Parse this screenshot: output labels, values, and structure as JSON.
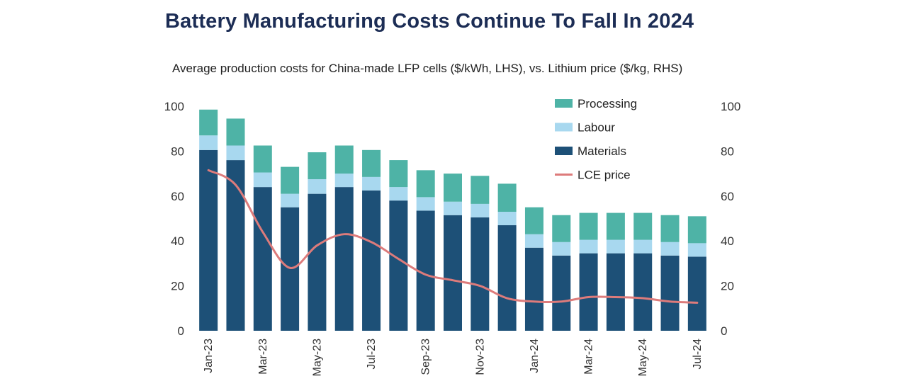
{
  "title": "Battery Manufacturing Costs Continue To Fall In 2024",
  "subtitle": "Average production costs for China-made LFP cells ($/kWh, LHS), vs. Lithium price ($/kg, RHS)",
  "colors": {
    "processing": "#4eb3a6",
    "labour": "#a8d8ef",
    "materials": "#1d5077",
    "lce_price": "#dd7b7b",
    "axis_text": "#333333",
    "title": "#1c2d55"
  },
  "chart_data": {
    "type": "bar",
    "stacked": true,
    "title": "Battery Manufacturing Costs Continue To Fall In 2024",
    "subtitle": "Average production costs for China-made LFP cells ($/kWh, LHS), vs. Lithium price ($/kg, RHS)",
    "categories": [
      "Jan-23",
      "Feb-23",
      "Mar-23",
      "Apr-23",
      "May-23",
      "Jun-23",
      "Jul-23",
      "Aug-23",
      "Sep-23",
      "Oct-23",
      "Nov-23",
      "Dec-23",
      "Jan-24",
      "Feb-24",
      "Mar-24",
      "Apr-24",
      "May-24",
      "Jun-24",
      "Jul-24"
    ],
    "x_tick_labels": [
      "Jan-23",
      "",
      "Mar-23",
      "",
      "May-23",
      "",
      "Jul-23",
      "",
      "Sep-23",
      "",
      "Nov-23",
      "",
      "Jan-24",
      "",
      "Mar-24",
      "",
      "May-24",
      "",
      "Jul-24"
    ],
    "series": [
      {
        "name": "Materials",
        "kind": "bar",
        "axis": "left",
        "color": "#1d5077",
        "values": [
          80.5,
          76,
          64,
          55,
          61,
          64,
          62.5,
          58,
          53.5,
          51.5,
          50.5,
          47,
          37,
          33.5,
          34.5,
          34.5,
          34.5,
          33.5,
          33
        ]
      },
      {
        "name": "Labour",
        "kind": "bar",
        "axis": "left",
        "color": "#a8d8ef",
        "values": [
          6.5,
          6.5,
          6.5,
          6,
          6.5,
          6,
          6,
          6,
          6,
          6,
          6,
          6,
          6,
          6,
          6,
          6,
          6,
          6,
          6
        ]
      },
      {
        "name": "Processing",
        "kind": "bar",
        "axis": "left",
        "color": "#4eb3a6",
        "values": [
          11.5,
          12,
          12,
          12,
          12,
          12.5,
          12,
          12,
          12,
          12.5,
          12.5,
          12.5,
          12,
          12,
          12,
          12,
          12,
          12,
          12
        ]
      },
      {
        "name": "LCE price",
        "kind": "line",
        "axis": "right",
        "color": "#dd7b7b",
        "values": [
          71.5,
          65,
          44,
          28,
          38,
          43,
          39.5,
          32,
          25,
          22.5,
          20,
          14.5,
          13,
          13,
          15,
          15,
          14.5,
          13,
          12.5
        ]
      }
    ],
    "legend": {
      "position": "top-right",
      "items": [
        "Processing",
        "Labour",
        "Materials",
        "LCE price"
      ]
    },
    "y_left": {
      "label": "",
      "min": 0,
      "max": 100,
      "ticks": [
        0,
        20,
        40,
        60,
        80,
        100
      ]
    },
    "y_right": {
      "label": "",
      "min": 0,
      "max": 100,
      "ticks": [
        0,
        20,
        40,
        60,
        80,
        100
      ]
    },
    "grid": false
  }
}
